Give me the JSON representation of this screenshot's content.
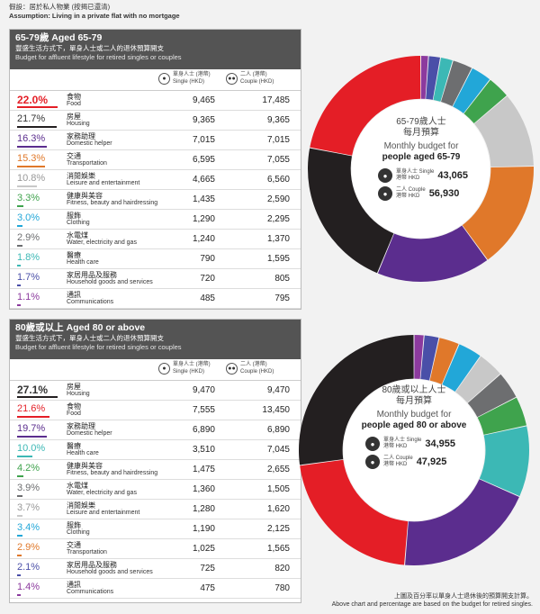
{
  "notes": {
    "assumption_zh": "假設：居於私人物業 (按揭已還清)",
    "assumption_en": "Assumption: Living in a private flat with no mortgage",
    "footer_zh": "上圖及百分率以單身人士退休後的預算開支計算。",
    "footer_en": "Above chart and percentage are based on the budget for retired singles."
  },
  "column_heads": {
    "single_zh": "單身人士 (港幣)",
    "single_en": "Single (HKD)",
    "couple_zh": "二人 (港幣)",
    "couple_en": "Couple (HKD)"
  },
  "panels": [
    {
      "title": "65-79歲 Aged 65-79",
      "subtitle_zh": "豐盛生活方式下，單身人士或二人的退休預算開支",
      "subtitle_en": "Budget for affluent lifestyle for retired singles or couples",
      "center": {
        "zh1": "65-79歲人士",
        "zh2": "每月預算",
        "en1": "Monthly budget for",
        "en2": "people aged 65-79",
        "single_label": "單身人士 Single",
        "single_unit": "港幣 HKD",
        "single_value": "43,065",
        "couple_label": "二人 Couple",
        "couple_unit": "港幣 HKD",
        "couple_value": "56,930"
      }
    },
    {
      "title": "80歲或以上 Aged 80 or above",
      "subtitle_zh": "豐盛生活方式下，單身人士或二人的退休預算開支",
      "subtitle_en": "Budget for affluent lifestyle for retired singles or couples",
      "center": {
        "zh1": "80歲或以上人士",
        "zh2": "每月預算",
        "en1": "Monthly budget for",
        "en2": "people aged 80 or above",
        "single_label": "單身人士 Single",
        "single_unit": "港幣 HKD",
        "single_value": "34,955",
        "couple_label": "二人 Couple",
        "couple_unit": "港幣 HKD",
        "couple_value": "47,925"
      }
    }
  ],
  "chart_data": [
    {
      "type": "pie",
      "title": "65-79歲 Aged 65-79",
      "rows": [
        {
          "pct": "22.0%",
          "zh": "食物",
          "en": "Food",
          "single": "9,465",
          "couple": "17,485",
          "value": 22.0,
          "color": "#e41e26"
        },
        {
          "pct": "21.7%",
          "zh": "房屋",
          "en": "Housing",
          "single": "9,365",
          "couple": "9,365",
          "value": 21.7,
          "color": "#231f20"
        },
        {
          "pct": "16.3%",
          "zh": "家務助理",
          "en": "Domestic helper",
          "single": "7,015",
          "couple": "7,015",
          "value": 16.3,
          "color": "#5b2d8e"
        },
        {
          "pct": "15.3%",
          "zh": "交通",
          "en": "Transportation",
          "single": "6,595",
          "couple": "7,055",
          "value": 15.3,
          "color": "#e0782a"
        },
        {
          "pct": "10.8%",
          "zh": "消閒娛樂",
          "en": "Leisure and entertainment",
          "single": "4,665",
          "couple": "6,560",
          "value": 10.8,
          "color": "#c8c8c8"
        },
        {
          "pct": "3.3%",
          "zh": "健康與美容",
          "en": "Fitness, beauty and hairdressing",
          "single": "1,435",
          "couple": "2,590",
          "value": 3.3,
          "color": "#3fa34d"
        },
        {
          "pct": "3.0%",
          "zh": "服飾",
          "en": "Clothing",
          "single": "1,290",
          "couple": "2,295",
          "value": 3.0,
          "color": "#22a7d8"
        },
        {
          "pct": "2.9%",
          "zh": "水電煤",
          "en": "Water, electricity and gas",
          "single": "1,240",
          "couple": "1,370",
          "value": 2.9,
          "color": "#6d6e70"
        },
        {
          "pct": "1.8%",
          "zh": "醫療",
          "en": "Health care",
          "single": "790",
          "couple": "1,595",
          "value": 1.8,
          "color": "#3cb8b5"
        },
        {
          "pct": "1.7%",
          "zh": "家居用品及服務",
          "en": "Household goods and services",
          "single": "720",
          "couple": "805",
          "value": 1.7,
          "color": "#4a4fa8"
        },
        {
          "pct": "1.1%",
          "zh": "通訊",
          "en": "Communications",
          "single": "485",
          "couple": "795",
          "value": 1.1,
          "color": "#8c3a9e"
        }
      ]
    },
    {
      "type": "pie",
      "title": "80歲或以上 Aged 80 or above",
      "rows": [
        {
          "pct": "27.1%",
          "zh": "房屋",
          "en": "Housing",
          "single": "9,470",
          "couple": "9,470",
          "value": 27.1,
          "color": "#231f20"
        },
        {
          "pct": "21.6%",
          "zh": "食物",
          "en": "Food",
          "single": "7,555",
          "couple": "13,450",
          "value": 21.6,
          "color": "#e41e26"
        },
        {
          "pct": "19.7%",
          "zh": "家務助理",
          "en": "Domestic helper",
          "single": "6,890",
          "couple": "6,890",
          "value": 19.7,
          "color": "#5b2d8e"
        },
        {
          "pct": "10.0%",
          "zh": "醫療",
          "en": "Health care",
          "single": "3,510",
          "couple": "7,045",
          "value": 10.0,
          "color": "#3cb8b5"
        },
        {
          "pct": "4.2%",
          "zh": "健康與美容",
          "en": "Fitness, beauty and hairdressing",
          "single": "1,475",
          "couple": "2,655",
          "value": 4.2,
          "color": "#3fa34d"
        },
        {
          "pct": "3.9%",
          "zh": "水電煤",
          "en": "Water, electricity and gas",
          "single": "1,360",
          "couple": "1,505",
          "value": 3.9,
          "color": "#6d6e70"
        },
        {
          "pct": "3.7%",
          "zh": "消閒娛樂",
          "en": "Leisure and entertainment",
          "single": "1,280",
          "couple": "1,620",
          "value": 3.7,
          "color": "#c8c8c8"
        },
        {
          "pct": "3.4%",
          "zh": "服飾",
          "en": "Clothing",
          "single": "1,190",
          "couple": "2,125",
          "value": 3.4,
          "color": "#22a7d8"
        },
        {
          "pct": "2.9%",
          "zh": "交通",
          "en": "Transportation",
          "single": "1,025",
          "couple": "1,565",
          "value": 2.9,
          "color": "#e0782a"
        },
        {
          "pct": "2.1%",
          "zh": "家居用品及服務",
          "en": "Household goods and services",
          "single": "725",
          "couple": "820",
          "value": 2.1,
          "color": "#4a4fa8"
        },
        {
          "pct": "1.4%",
          "zh": "通訊",
          "en": "Communications",
          "single": "475",
          "couple": "780",
          "value": 1.4,
          "color": "#8c3a9e"
        }
      ]
    }
  ]
}
